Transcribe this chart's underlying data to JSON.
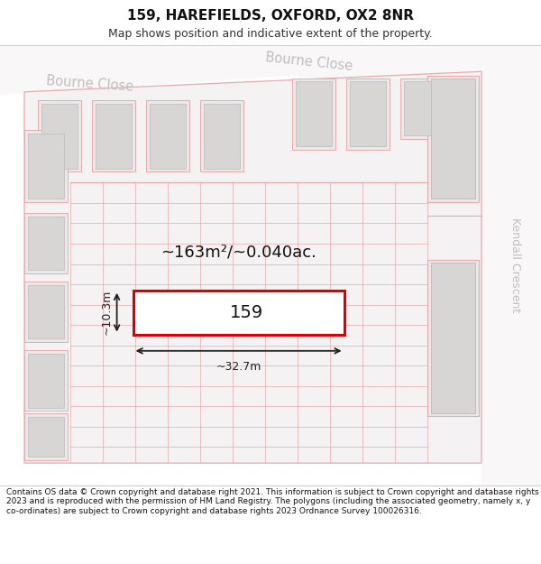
{
  "title": "159, HAREFIELDS, OXFORD, OX2 8NR",
  "subtitle": "Map shows position and indicative extent of the property.",
  "footer": "Contains OS data © Crown copyright and database right 2021. This information is subject to Crown copyright and database rights 2023 and is reproduced with the permission of HM Land Registry. The polygons (including the associated geometry, namely x, y co-ordinates) are subject to Crown copyright and database rights 2023 Ordnance Survey 100026316.",
  "area_label": "~163m²/~0.040ac.",
  "number_label": "159",
  "dim_width": "~32.7m",
  "dim_height": "~10.3m",
  "street_name_tl": "Bourne Close",
  "street_name_tr": "Bourne Close",
  "street_name_r": "Kendall Crescent",
  "map_bg": "#f7f5f5",
  "road_bg": "#f7f5f5",
  "cadastral_color": "#e8aaaa",
  "building_fill": "#d8d5d5",
  "building_edge": "#bbbbbb",
  "highlight_fill": "#ffffff",
  "highlight_edge": "#dd0000",
  "street_color": "#c0bebe",
  "dim_color": "#222222",
  "title_fontsize": 11,
  "subtitle_fontsize": 9,
  "footer_fontsize": 6.5
}
